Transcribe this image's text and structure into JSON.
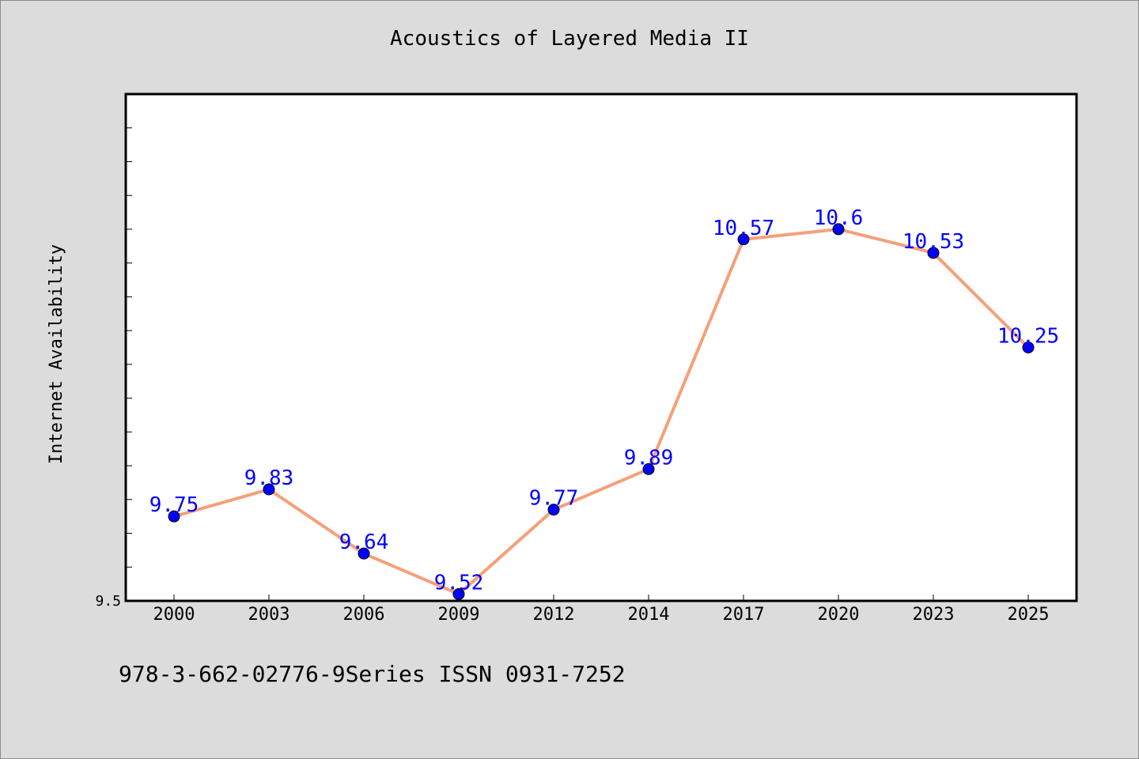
{
  "title": "Acoustics of Layered Media II",
  "footer_text": "978-3-662-02776-9Series ISSN 0931-7252",
  "chart_data": {
    "type": "line",
    "title": "Acoustics of Layered Media II",
    "xlabel": "",
    "ylabel": "Internet Availability",
    "categories": [
      "2000",
      "2003",
      "2006",
      "2009",
      "2012",
      "2014",
      "2017",
      "2020",
      "2023",
      "2025"
    ],
    "series": [
      {
        "values": [
          9.75,
          9.83,
          9.64,
          9.52,
          9.77,
          9.89,
          10.57,
          10.6,
          10.53,
          10.25
        ],
        "labels": [
          "9.75",
          "9.83",
          "9.64",
          "9.52",
          "9.77",
          "9.89",
          "10.57",
          "10.6",
          "10.53",
          "10.25"
        ],
        "line_color": "#f4a07a",
        "marker_color": "#0000ff",
        "label_color": "#0000ff"
      }
    ],
    "ylim": [
      9.5,
      11.0
    ],
    "yticks_labeled": [
      "9.5"
    ],
    "grid": false,
    "legend": "none"
  }
}
